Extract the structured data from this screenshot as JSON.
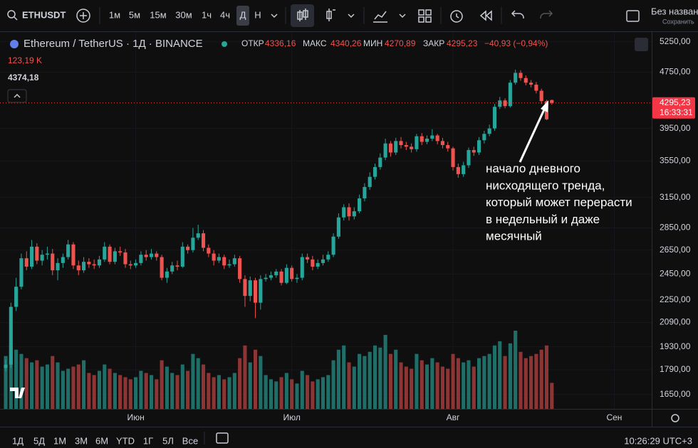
{
  "toolbar": {
    "symbol": "ETHUSDT",
    "intervals": [
      "1м",
      "5м",
      "15м",
      "30м",
      "1ч",
      "4ч",
      "Д",
      "Н"
    ],
    "layout_name": "Без назван",
    "save": "Сохранить"
  },
  "legend": {
    "title": "Ethereum / TetherUS · 1Д · BINANCE",
    "open_label": "ОТКР",
    "open": "4336,16",
    "high_label": "МАКС",
    "high": "4340,26",
    "low_label": "МИН",
    "low": "4270,89",
    "close_label": "ЗАКР",
    "close": "4295,23",
    "change": "−40,93 (−0,94%)",
    "volume": "123,19 K",
    "indicator": "4374,18"
  },
  "annotation": {
    "lines": [
      "начало дневного",
      "нисходящего тренда,",
      "который может перерасти",
      "в недельный и даже",
      "месячный"
    ]
  },
  "bottom_bar": {
    "ranges": [
      "1Д",
      "5Д",
      "1М",
      "3М",
      "6М",
      "YTD",
      "1Г",
      "5Л",
      "Все"
    ],
    "clock": "10:26:29 UTC+3"
  },
  "chart_data": {
    "type": "candlestick",
    "log_scale": true,
    "up_color": "#26a69a",
    "down_color": "#ef5350",
    "volume_up_color": "#1f6e68",
    "volume_down_color": "#8c3534",
    "last_price_label": "4295,23",
    "countdown": "16:33:31",
    "xlim": [
      -1.1,
      124.2
    ],
    "xticks": [
      {
        "value": 25,
        "label": "Июн"
      },
      {
        "value": 55,
        "label": "Июл"
      },
      {
        "value": 86,
        "label": "Авг"
      },
      {
        "value": 117,
        "label": "Сен"
      }
    ],
    "ylim": [
      1574,
      5420
    ],
    "yticks": [
      {
        "value": 5250,
        "label": "5250,00"
      },
      {
        "value": 4750,
        "label": "4750,00"
      },
      {
        "value": 3950,
        "label": "3950,00"
      },
      {
        "value": 3550,
        "label": "3550,00"
      },
      {
        "value": 3150,
        "label": "3150,00"
      },
      {
        "value": 2850,
        "label": "2850,00"
      },
      {
        "value": 2650,
        "label": "2650,00"
      },
      {
        "value": 2450,
        "label": "2450,00"
      },
      {
        "value": 2250,
        "label": "2250,00"
      },
      {
        "value": 2090,
        "label": "2090,00"
      },
      {
        "value": 1930,
        "label": "1930,00"
      },
      {
        "value": 1790,
        "label": "1790,00"
      },
      {
        "value": 1650,
        "label": "1650,00"
      }
    ],
    "open": [
      1800,
      1820,
      2200,
      2350,
      2580,
      2510,
      2680,
      2560,
      2610,
      2620,
      2480,
      2540,
      2590,
      2700,
      2520,
      2480,
      2550,
      2530,
      2520,
      2570,
      2680,
      2550,
      2640,
      2630,
      2530,
      2520,
      2540,
      2610,
      2590,
      2620,
      2590,
      2420,
      2470,
      2520,
      2510,
      2680,
      2650,
      2760,
      2800,
      2670,
      2620,
      2560,
      2590,
      2520,
      2530,
      2580,
      2410,
      2280,
      2400,
      2230,
      2410,
      2420,
      2440,
      2470,
      2380,
      2500,
      2410,
      2420,
      2590,
      2570,
      2510,
      2540,
      2570,
      2610,
      2770,
      2950,
      3050,
      2960,
      3010,
      3140,
      3260,
      3370,
      3480,
      3590,
      3760,
      3650,
      3790,
      3740,
      3720,
      3690,
      3850,
      3780,
      3820,
      3860,
      3790,
      3740,
      3700,
      3480,
      3400,
      3500,
      3680,
      3650,
      3800,
      3880,
      3950,
      4240,
      4330,
      4250,
      4590,
      4740,
      4660,
      4590,
      4560,
      4470,
      4320,
      4336.16
    ],
    "high": [
      1850,
      2230,
      2420,
      2620,
      2640,
      2740,
      2710,
      2650,
      2680,
      2660,
      2580,
      2620,
      2740,
      2720,
      2560,
      2590,
      2580,
      2570,
      2600,
      2720,
      2700,
      2670,
      2680,
      2660,
      2560,
      2570,
      2640,
      2650,
      2660,
      2640,
      2610,
      2500,
      2550,
      2560,
      2720,
      2700,
      2850,
      2880,
      2830,
      2700,
      2650,
      2620,
      2610,
      2570,
      2610,
      2600,
      2440,
      2430,
      2420,
      2440,
      2450,
      2470,
      2490,
      2490,
      2530,
      2520,
      2450,
      2620,
      2620,
      2600,
      2570,
      2610,
      2640,
      2800,
      2990,
      3080,
      3090,
      3050,
      3180,
      3300,
      3420,
      3520,
      3640,
      3820,
      3790,
      3830,
      3840,
      3780,
      3760,
      3880,
      3890,
      3860,
      3940,
      3880,
      3830,
      3780,
      3720,
      3520,
      3540,
      3710,
      3720,
      3840,
      3920,
      4000,
      4280,
      4380,
      4360,
      4630,
      4790,
      4780,
      4700,
      4630,
      4600,
      4500,
      4340,
      4340.26
    ],
    "low": [
      1780,
      1800,
      2170,
      2330,
      2480,
      2490,
      2530,
      2520,
      2570,
      2440,
      2400,
      2500,
      2570,
      2490,
      2440,
      2460,
      2500,
      2490,
      2500,
      2550,
      2530,
      2530,
      2600,
      2500,
      2490,
      2500,
      2520,
      2560,
      2570,
      2560,
      2400,
      2380,
      2450,
      2480,
      2500,
      2620,
      2630,
      2740,
      2640,
      2590,
      2520,
      2540,
      2490,
      2500,
      2510,
      2380,
      2200,
      2240,
      2120,
      2180,
      2390,
      2400,
      2420,
      2360,
      2370,
      2390,
      2380,
      2400,
      2540,
      2480,
      2490,
      2520,
      2550,
      2590,
      2750,
      2920,
      2920,
      2930,
      2990,
      3110,
      3230,
      3340,
      3450,
      3560,
      3600,
      3620,
      3700,
      3680,
      3650,
      3660,
      3740,
      3750,
      3790,
      3750,
      3700,
      3660,
      3440,
      3360,
      3370,
      3470,
      3610,
      3620,
      3760,
      3850,
      3920,
      4210,
      4220,
      4230,
      4560,
      4620,
      4550,
      4520,
      4430,
      4280,
      4060,
      4270.89
    ],
    "close": [
      1820,
      2200,
      2350,
      2580,
      2510,
      2680,
      2560,
      2610,
      2620,
      2480,
      2540,
      2590,
      2700,
      2520,
      2480,
      2550,
      2530,
      2520,
      2570,
      2680,
      2550,
      2640,
      2630,
      2530,
      2520,
      2540,
      2610,
      2590,
      2620,
      2590,
      2420,
      2470,
      2520,
      2510,
      2680,
      2650,
      2760,
      2800,
      2670,
      2620,
      2560,
      2590,
      2520,
      2530,
      2580,
      2410,
      2280,
      2400,
      2230,
      2410,
      2420,
      2440,
      2470,
      2380,
      2500,
      2410,
      2420,
      2590,
      2570,
      2510,
      2540,
      2570,
      2610,
      2770,
      2950,
      3050,
      2960,
      3010,
      3140,
      3260,
      3370,
      3480,
      3590,
      3760,
      3650,
      3790,
      3740,
      3720,
      3690,
      3850,
      3780,
      3820,
      3860,
      3790,
      3740,
      3700,
      3480,
      3400,
      3500,
      3680,
      3650,
      3800,
      3880,
      3950,
      4240,
      4330,
      4250,
      4590,
      4740,
      4660,
      4590,
      4560,
      4470,
      4320,
      4070,
      4295.23
    ],
    "volume": [
      250,
      300,
      280,
      260,
      240,
      220,
      230,
      200,
      210,
      250,
      220,
      180,
      190,
      200,
      210,
      230,
      170,
      160,
      180,
      210,
      190,
      170,
      160,
      150,
      140,
      150,
      180,
      170,
      160,
      140,
      230,
      200,
      170,
      160,
      210,
      180,
      260,
      240,
      210,
      170,
      150,
      160,
      140,
      150,
      170,
      240,
      300,
      220,
      280,
      250,
      160,
      140,
      130,
      150,
      170,
      140,
      120,
      180,
      160,
      130,
      140,
      150,
      160,
      230,
      280,
      300,
      220,
      200,
      260,
      250,
      270,
      300,
      290,
      350,
      260,
      280,
      220,
      200,
      190,
      260,
      230,
      210,
      240,
      220,
      200,
      190,
      260,
      240,
      220,
      230,
      200,
      240,
      250,
      260,
      300,
      320,
      250,
      310,
      370,
      270,
      240,
      250,
      260,
      280,
      300,
      123.19
    ]
  }
}
